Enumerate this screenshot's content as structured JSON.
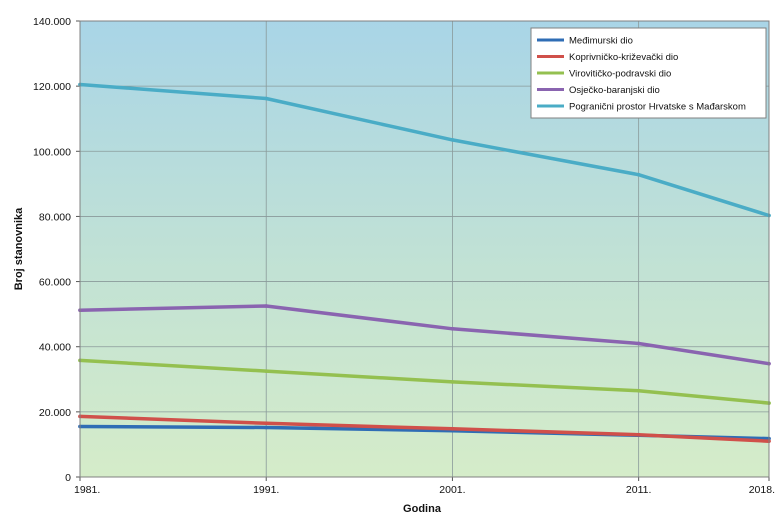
{
  "chart_data": {
    "type": "line",
    "title": "",
    "xlabel": "Godina",
    "ylabel": "Broj stanovnika",
    "x": [
      "1981.",
      "1991.",
      "2001.",
      "2011.",
      "2018."
    ],
    "x_numeric": [
      1981,
      1991,
      2001,
      2011,
      2018
    ],
    "ylim": [
      0,
      140000
    ],
    "yticks": [
      0,
      20000,
      40000,
      60000,
      80000,
      100000,
      120000,
      140000
    ],
    "ytick_labels": [
      "0",
      "20.000",
      "40.000",
      "60.000",
      "80.000",
      "100.000",
      "120.000",
      "140.000"
    ],
    "grid": true,
    "legend_position": "top-right",
    "plot_background": "#bfe0d0",
    "series": [
      {
        "name": "Međimurski dio",
        "color": "#2f6db5",
        "values": [
          15500,
          15200,
          14200,
          12800,
          11800
        ]
      },
      {
        "name": "Koprivničko-križevački dio",
        "color": "#d0504a",
        "values": [
          18600,
          16500,
          14800,
          13000,
          11000
        ]
      },
      {
        "name": "Virovitičko-podravski dio",
        "color": "#94c050",
        "values": [
          35800,
          32500,
          29200,
          26500,
          22700
        ]
      },
      {
        "name": "Osječko-baranjski dio",
        "color": "#8a64b0",
        "values": [
          51200,
          52500,
          45500,
          41000,
          34800
        ]
      },
      {
        "name": "Pogranični prostor Hrvatske s Mađarskom",
        "color": "#4aacc6",
        "values": [
          120500,
          116200,
          103500,
          92800,
          80300
        ]
      }
    ]
  }
}
